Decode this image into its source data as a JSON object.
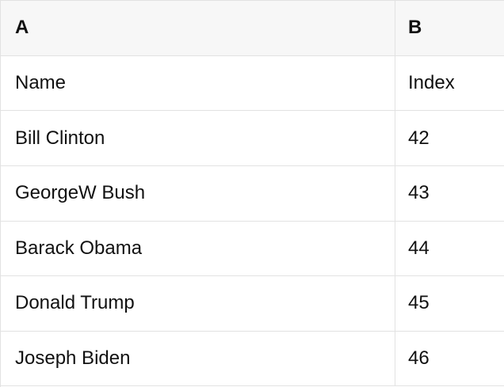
{
  "table": {
    "column_headers": [
      "A",
      "B"
    ],
    "rows": [
      [
        "Name",
        "Index"
      ],
      [
        "Bill Clinton",
        "42"
      ],
      [
        "GeorgeW Bush",
        "43"
      ],
      [
        "Barack Obama",
        "44"
      ],
      [
        "Donald Trump",
        "45"
      ],
      [
        "Joseph Biden",
        "46"
      ]
    ]
  },
  "colors": {
    "header_bg": "#f7f7f7",
    "border": "#e2e2e2",
    "text": "#111111"
  }
}
